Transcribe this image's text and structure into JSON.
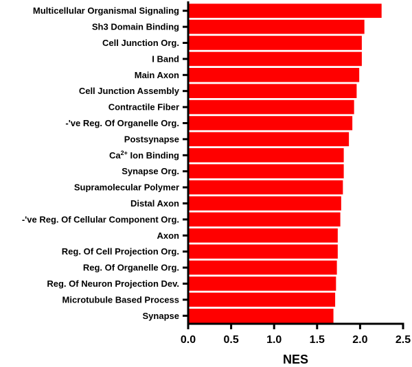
{
  "chart_data": {
    "type": "bar",
    "orientation": "horizontal",
    "title": "",
    "xlabel": "NES",
    "ylabel": "",
    "xlim": [
      0,
      2.5
    ],
    "x_ticks": [
      "0.0",
      "0.5",
      "1.0",
      "1.5",
      "2.0",
      "2.5"
    ],
    "bar_color": "#ff0000",
    "grid": false,
    "categories": [
      "Multicellular Organismal Signaling",
      "Sh3 Domain Binding",
      "Cell Junction Org.",
      "I Band",
      "Main Axon",
      "Cell Junction Assembly",
      "Contractile Fiber",
      "-'ve Reg. Of Organelle Org.",
      "Postsynapse",
      "Ca2+ Ion Binding",
      "Synapse Org.",
      "Supramolecular Polymer",
      "Distal Axon",
      "-'ve Reg. Of Cellular Component Org.",
      "Axon",
      "Reg. Of Cell Projection Org.",
      "Reg. Of Organelle Org.",
      "Reg. Of Neuron Projection Dev.",
      "Microtubule Based Process",
      "Synapse"
    ],
    "values": [
      2.25,
      2.05,
      2.02,
      2.02,
      1.99,
      1.96,
      1.93,
      1.91,
      1.87,
      1.81,
      1.81,
      1.8,
      1.78,
      1.77,
      1.74,
      1.74,
      1.73,
      1.72,
      1.71,
      1.69
    ]
  }
}
